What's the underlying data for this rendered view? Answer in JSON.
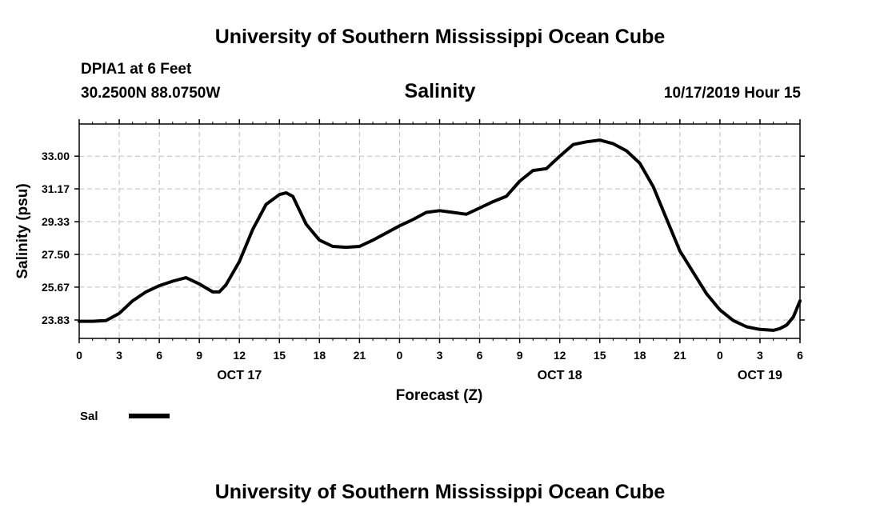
{
  "header": {
    "title": "University of Southern Mississippi Ocean Cube",
    "station": "DPIA1 at 6 Feet",
    "coords": "30.2500N 88.0750W",
    "variable": "Salinity",
    "datetime": "10/17/2019 Hour 15"
  },
  "footer": {
    "title": "University of Southern Mississippi Ocean Cube"
  },
  "legend": {
    "label": "Sal",
    "color": "#000000"
  },
  "chart_data": {
    "type": "line",
    "title": "Salinity",
    "xlabel": "Forecast (Z)",
    "ylabel": "Salinity (psu)",
    "xlim": [
      0,
      54
    ],
    "ylim": [
      22.8,
      34.8
    ],
    "yticks": [
      "23.83",
      "25.67",
      "27.50",
      "29.33",
      "31.17",
      "33.00"
    ],
    "ytick_values": [
      23.83,
      25.67,
      27.5,
      29.33,
      31.17,
      33.0
    ],
    "xtick_values": [
      0,
      3,
      6,
      9,
      12,
      15,
      18,
      21,
      24,
      27,
      30,
      33,
      36,
      39,
      42,
      45,
      48,
      51,
      54
    ],
    "xticks": [
      "0",
      "3",
      "6",
      "9",
      "12",
      "15",
      "18",
      "21",
      "0",
      "3",
      "6",
      "9",
      "12",
      "15",
      "18",
      "21",
      "0",
      "3",
      "6"
    ],
    "date_labels": [
      {
        "x": 12,
        "text": "OCT 17"
      },
      {
        "x": 36,
        "text": "OCT 18"
      },
      {
        "x": 51,
        "text": "OCT 19"
      }
    ],
    "grid": true,
    "series": [
      {
        "name": "Sal",
        "color": "#000000",
        "x": [
          0,
          1,
          2,
          3,
          4,
          5,
          6,
          7,
          8,
          9,
          10,
          10.5,
          11,
          12,
          13,
          14,
          15,
          15.5,
          16,
          17,
          18,
          19,
          20,
          21,
          22,
          23,
          24,
          25,
          26,
          27,
          28,
          29,
          30,
          31,
          32,
          33,
          34,
          35,
          36,
          37,
          38,
          39,
          40,
          41,
          42,
          43,
          44,
          45,
          46,
          47,
          48,
          49,
          50,
          51,
          52,
          52.5,
          53,
          53.5,
          54
        ],
        "values": [
          23.76,
          23.76,
          23.8,
          24.2,
          24.9,
          25.4,
          25.75,
          26.0,
          26.2,
          25.85,
          25.4,
          25.4,
          25.8,
          27.1,
          28.9,
          30.3,
          30.85,
          30.95,
          30.75,
          29.2,
          28.3,
          27.95,
          27.9,
          27.95,
          28.3,
          28.7,
          29.1,
          29.45,
          29.85,
          29.95,
          29.85,
          29.75,
          30.1,
          30.45,
          30.75,
          31.6,
          32.2,
          32.3,
          33.0,
          33.65,
          33.8,
          33.9,
          33.7,
          33.3,
          32.6,
          31.3,
          29.5,
          27.7,
          26.5,
          25.3,
          24.4,
          23.8,
          23.45,
          23.3,
          23.25,
          23.35,
          23.55,
          24.0,
          24.9
        ]
      }
    ]
  }
}
